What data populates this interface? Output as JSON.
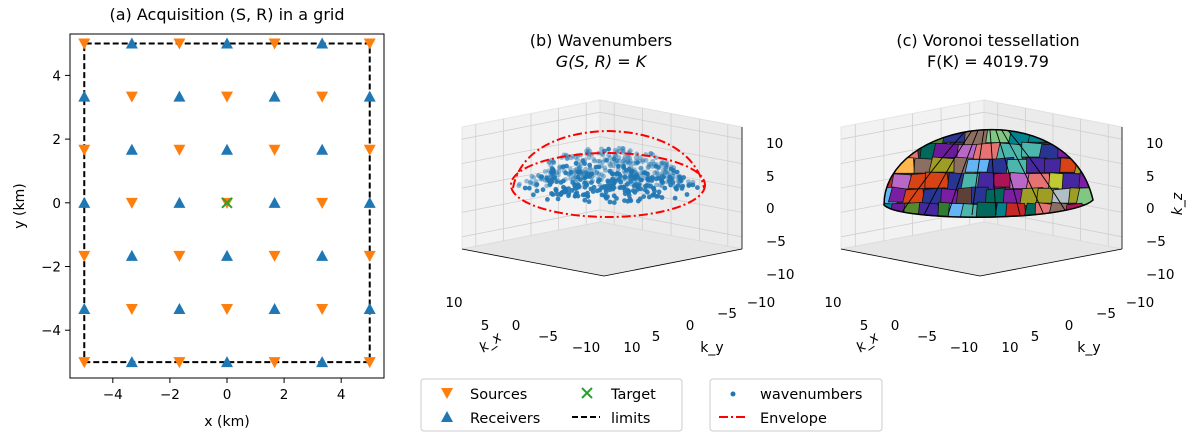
{
  "chart_data": [
    {
      "panel": "a",
      "type": "scatter",
      "title": "(a) Acquisition (S, R) in a grid",
      "xlabel": "x (km)",
      "ylabel": "y (km)",
      "xlim": [
        -5.5,
        5.5
      ],
      "ylim": [
        -5.5,
        5.3
      ],
      "xticks": [
        -4,
        -2,
        0,
        2,
        4
      ],
      "yticks": [
        -4,
        -2,
        0,
        2,
        4
      ],
      "grid": false,
      "grid_coords": [
        -5,
        -3.333,
        -1.667,
        0,
        1.667,
        3.333,
        5
      ],
      "series": [
        {
          "name": "Sources",
          "marker": "triangle-down",
          "color": "#ff7f0e",
          "rule": "points on the 7x7 grid whose row+column index is even"
        },
        {
          "name": "Receivers",
          "marker": "triangle-up",
          "color": "#1f77b4",
          "rule": "points on the 7x7 grid whose row+column index is odd"
        },
        {
          "name": "Target",
          "marker": "x",
          "color": "#2ca02c",
          "points": [
            [
              0,
              0
            ]
          ]
        },
        {
          "name": "limits",
          "style": "dashed",
          "color": "#000000",
          "points": [
            [
              -5,
              -5
            ],
            [
              5,
              -5
            ],
            [
              5,
              5
            ],
            [
              -5,
              5
            ],
            [
              -5,
              -5
            ]
          ]
        }
      ]
    },
    {
      "panel": "b",
      "type": "scatter",
      "title_line1": "(b) Wavenumbers",
      "title_line2": "G(S, R) = K",
      "xlabel": "k_x",
      "ylabel": "k_y",
      "zlabel": "",
      "xticks": [
        "10",
        "5",
        "0",
        "−5",
        "−10"
      ],
      "yticks": [
        "10",
        "5",
        "0",
        "−5",
        "−10"
      ],
      "zticks": [
        "10",
        "5",
        "0",
        "−5",
        "−10"
      ],
      "series": [
        {
          "name": "wavenumbers",
          "marker": "dot",
          "color": "#1f77b4",
          "description": "points filling a flattened hemisphere of radius about 10"
        },
        {
          "name": "Envelope",
          "style": "dash-dot",
          "color": "#ff0000"
        }
      ]
    },
    {
      "panel": "c",
      "type": "mesh",
      "title_line1": "(c) Voronoi tessellation",
      "title_line2": "F(K) =  4019.79",
      "xlabel": "k_x",
      "ylabel": "k_y",
      "zlabel": "k_z",
      "xticks": [
        "10",
        "5",
        "0",
        "−5",
        "−10"
      ],
      "yticks": [
        "10",
        "5",
        "0",
        "−5",
        "−10"
      ],
      "zticks": [
        "10",
        "5",
        "0",
        "−5",
        "−10"
      ]
    }
  ],
  "legends": [
    {
      "entries": [
        {
          "label": "Sources",
          "marker": "triangle-down",
          "color": "#ff7f0e"
        },
        {
          "label": "Target",
          "marker": "x",
          "color": "#2ca02c"
        },
        {
          "label": "Receivers",
          "marker": "triangle-up",
          "color": "#1f77b4"
        },
        {
          "label": "limits",
          "marker": "dashed-line",
          "color": "#000000"
        }
      ]
    },
    {
      "entries": [
        {
          "label": "wavenumbers",
          "marker": "dot",
          "color": "#1f77b4"
        },
        {
          "label": "Envelope",
          "marker": "dash-dot-line",
          "color": "#ff0000"
        }
      ]
    }
  ]
}
